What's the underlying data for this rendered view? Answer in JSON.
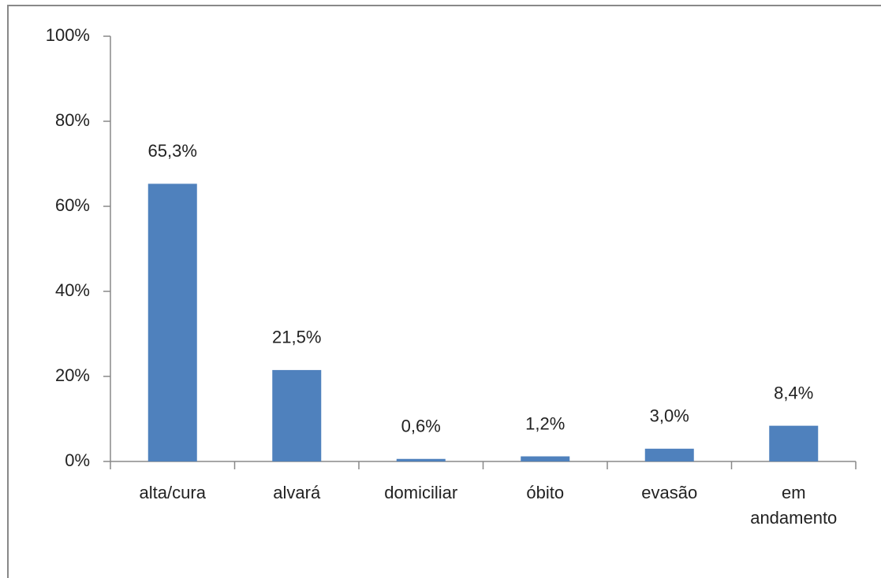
{
  "chart_data": {
    "type": "bar",
    "categories": [
      "alta/cura",
      "alvará",
      "domiciliar",
      "óbito",
      "evasão",
      "em andamento"
    ],
    "values": [
      65.3,
      21.5,
      0.6,
      1.2,
      3.0,
      8.4
    ],
    "value_labels": [
      "65,3%",
      "21,5%",
      "0,6%",
      "1,2%",
      "3,0%",
      "8,4%"
    ],
    "color": "#4f81bd",
    "ylim": [
      0,
      100
    ],
    "yticks": [
      {
        "value": 0,
        "label": "0%"
      },
      {
        "value": 20,
        "label": "20%"
      },
      {
        "value": 40,
        "label": "40%"
      },
      {
        "value": 60,
        "label": "60%"
      },
      {
        "value": 80,
        "label": "80%"
      },
      {
        "value": 100,
        "label": "100%"
      }
    ],
    "grid": false
  }
}
